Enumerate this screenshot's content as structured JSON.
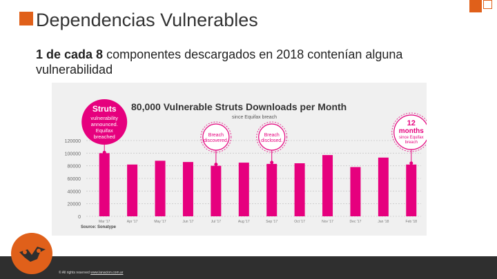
{
  "slide": {
    "title": "Dependencias Vulnerables",
    "subtitle_bold": "1 de cada 8",
    "subtitle_rest": " componentes descargados en 2018 contenían alguna",
    "subtitle_bold2": "vulnerabilidad",
    "footer": "© All rights reserved",
    "footer_link": "www.lanacion.com.ar"
  },
  "colors": {
    "accent": "#e0601a",
    "bar": "#e6007e",
    "footer_bg": "#2f2f2f"
  },
  "chart_data": {
    "type": "bar",
    "title": "80,000 Vulnerable Struts Downloads per Month",
    "subtitle": "since Equifax breach",
    "source": "Source: Sonatype",
    "categories": [
      "Mar '17",
      "Apr '17",
      "May '17",
      "Jun '17",
      "Jul '17",
      "Aug '17",
      "Sep '17",
      "Oct '17",
      "Nov '17",
      "Dec '17",
      "Jan '18",
      "Feb '18"
    ],
    "values": [
      100000,
      82000,
      88000,
      86000,
      80000,
      85000,
      83000,
      84000,
      97000,
      78000,
      93000,
      82000
    ],
    "ylim": [
      0,
      120000
    ],
    "yticks": [
      0,
      20000,
      40000,
      60000,
      80000,
      100000,
      120000
    ],
    "ytick_labels": [
      "0",
      "20000",
      "40000",
      "60000",
      "80000",
      "100000",
      "120000"
    ],
    "annotations": [
      {
        "category_index": 0,
        "style": "filled",
        "big": "Struts",
        "text": [
          "vulnerability",
          "announced.",
          "Equifax",
          "breached"
        ]
      },
      {
        "category_index": 4,
        "style": "outline",
        "text": [
          "Breach",
          "discovered."
        ]
      },
      {
        "category_index": 6,
        "style": "outline",
        "text": [
          "Breach",
          "disclosed."
        ]
      },
      {
        "category_index": 11,
        "style": "outline",
        "big": [
          "12",
          "months"
        ],
        "text": [
          "since Equifax",
          "breach"
        ]
      }
    ]
  }
}
